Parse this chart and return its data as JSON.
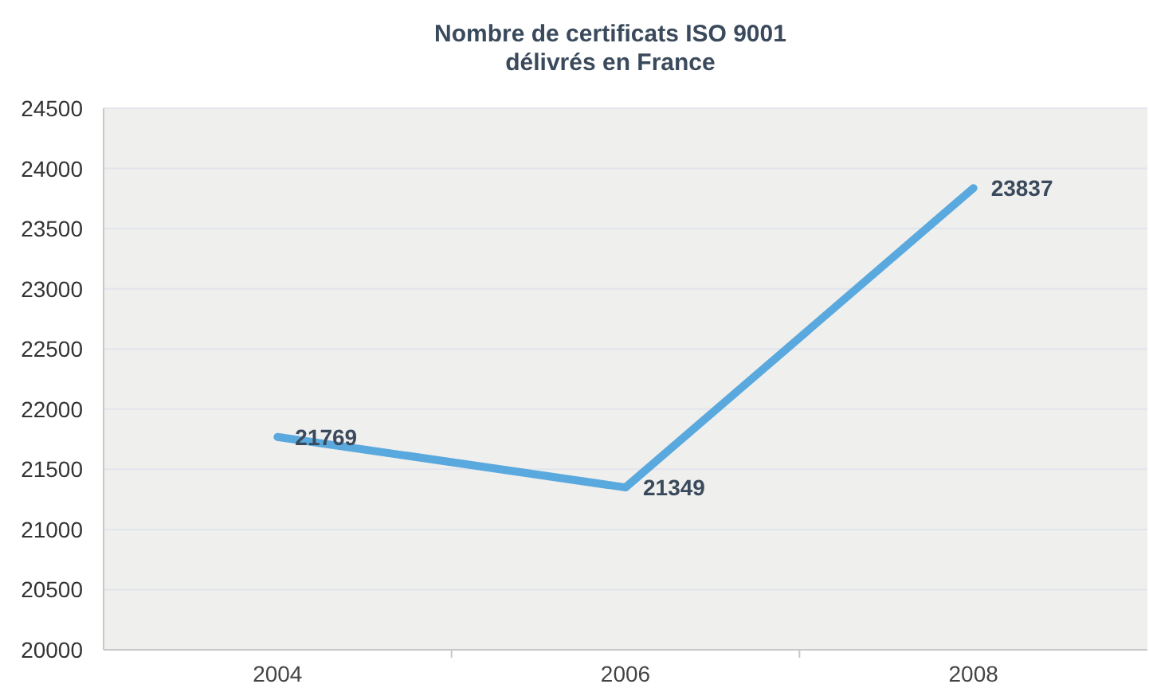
{
  "chart_data": {
    "type": "line",
    "title": "Nombre de certificats ISO 9001\ndélivrés en France",
    "categories": [
      "2004",
      "2006",
      "2008"
    ],
    "series": [
      {
        "color": "#5aa9de",
        "values": [
          21769,
          21349,
          23837
        ]
      }
    ],
    "ylim": [
      20000,
      24500
    ],
    "yticks": [
      20000,
      20500,
      21000,
      21500,
      22000,
      22500,
      23000,
      23500,
      24000,
      24500
    ],
    "grid": "y",
    "data_labels": true,
    "marker": "none",
    "line_style": "solid"
  }
}
